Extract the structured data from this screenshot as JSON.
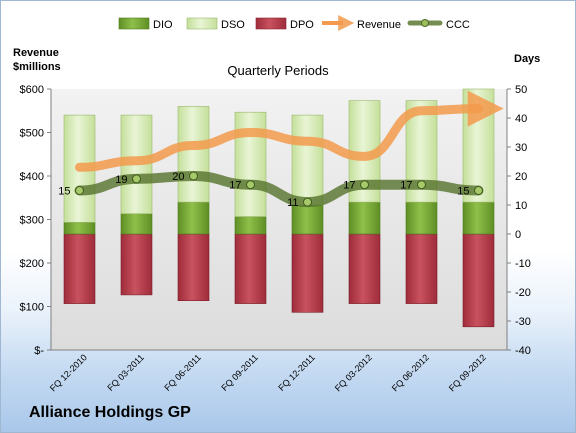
{
  "left_axis_title_line1": "Revenue",
  "left_axis_title_line2": "$millions",
  "right_axis_title": "Days",
  "company": "Alliance Holdings GP",
  "colors": {
    "dio": "#7fae3c",
    "dso": "#d6eab4",
    "dpo": "#b33a48",
    "revenue": "#f39a4c",
    "ccc": "#4f6a2a"
  },
  "chart_data": {
    "type": "bar",
    "title": "Quarterly Periods",
    "categories": [
      "FQ 12-2010",
      "FQ 03-2011",
      "FQ 06-2011",
      "FQ 09-2011",
      "FQ 12-2011",
      "FQ 03-2012",
      "FQ 06-2012",
      "FQ 09-2012"
    ],
    "legend": [
      "DIO",
      "DSO",
      "DPO",
      "Revenue",
      "CCC"
    ],
    "legend_position": "top",
    "series": [
      {
        "name": "DIO",
        "axis": "right",
        "values": [
          4,
          7,
          11,
          6,
          10,
          11,
          11,
          11
        ]
      },
      {
        "name": "DSO",
        "axis": "right",
        "values": [
          37,
          34,
          33,
          36,
          31,
          35,
          35,
          39
        ]
      },
      {
        "name": "DPO",
        "axis": "right",
        "values": [
          -24,
          -21,
          -23,
          -24,
          -27,
          -24,
          -24,
          -32
        ]
      },
      {
        "name": "Revenue",
        "axis": "left",
        "type": "line",
        "values": [
          420,
          435,
          470,
          500,
          480,
          445,
          550,
          555
        ]
      },
      {
        "name": "CCC",
        "axis": "right",
        "type": "line",
        "values": [
          15,
          19,
          20,
          17,
          11,
          17,
          17,
          15
        ]
      }
    ],
    "ccc_labels": [
      "15",
      "19",
      "20",
      "17",
      "11",
      "17",
      "17",
      "15"
    ],
    "left_axis": {
      "ylim": [
        0,
        600
      ],
      "ticks": [
        "$-",
        "$100",
        "$200",
        "$300",
        "$400",
        "$500",
        "$600"
      ]
    },
    "right_axis": {
      "ylim": [
        -40,
        50
      ],
      "ticks": [
        "-40",
        "-30",
        "-20",
        "-10",
        "0",
        "10",
        "20",
        "30",
        "40",
        "50"
      ]
    },
    "grid": false
  }
}
